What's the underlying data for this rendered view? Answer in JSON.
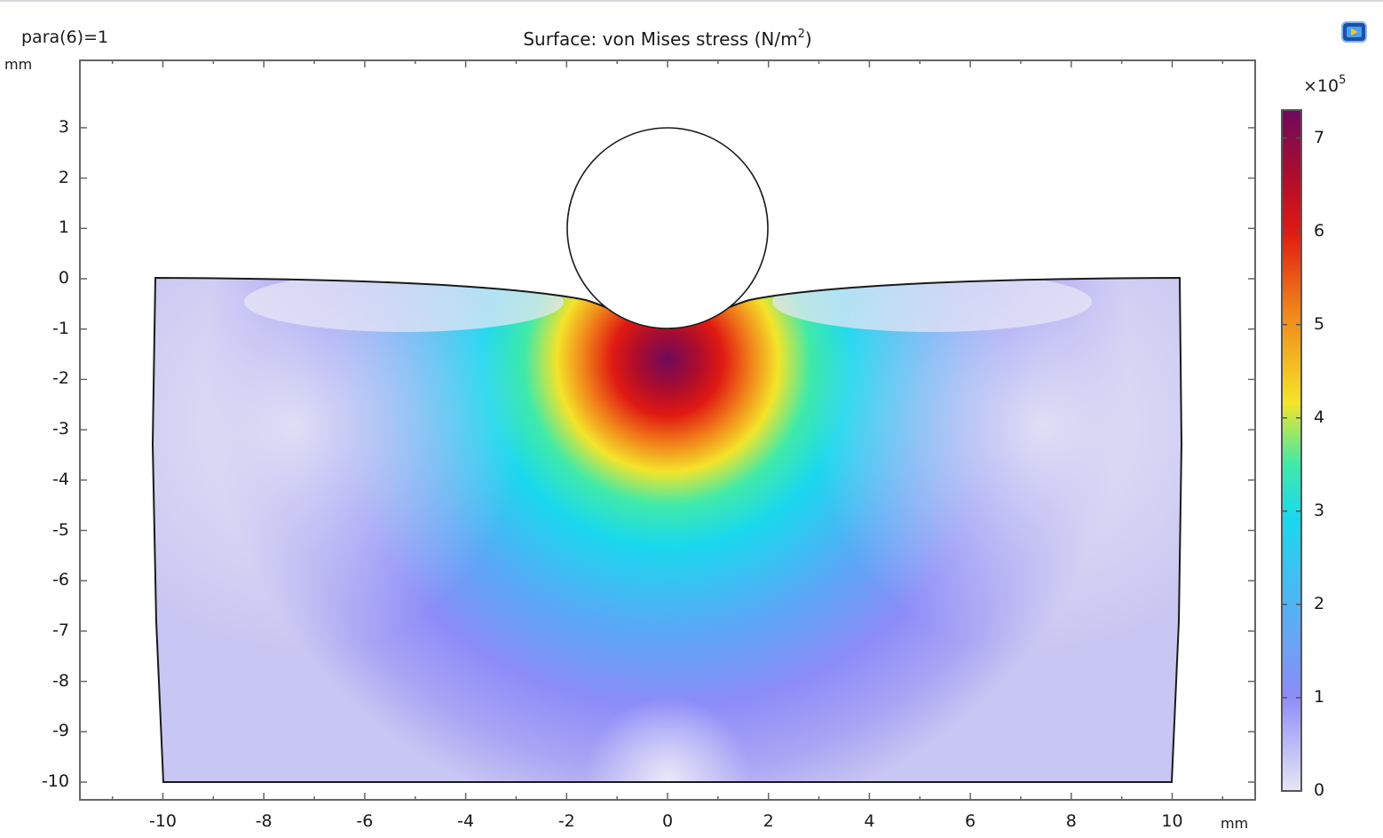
{
  "window": {
    "parameter_label": "para(6)=1",
    "app_icon": "comsol-logo-icon"
  },
  "chart_data": {
    "type": "heatmap",
    "title": "Surface: von Mises stress (N/m",
    "title_superscript": "2",
    "title_suffix": ")",
    "xlabel": "mm",
    "ylabel": "mm",
    "xlim": [
      -11.7,
      11.7
    ],
    "ylim": [
      -10.35,
      4.4
    ],
    "x_ticks": [
      "-10",
      "-8",
      "-6",
      "-4",
      "-2",
      "0",
      "2",
      "4",
      "6",
      "8",
      "10"
    ],
    "y_ticks": [
      "3",
      "2",
      "1",
      "0",
      "-1",
      "-2",
      "-3",
      "-4",
      "-5",
      "-6",
      "-7",
      "-8",
      "-9",
      "-10"
    ],
    "geometry": {
      "block": {
        "x_range": [
          -10,
          10
        ],
        "y_range": [
          -10,
          0
        ],
        "deformed_top": true
      },
      "cylinder": {
        "center": [
          0,
          1
        ],
        "radius": 2,
        "contact_depth": -0.95
      }
    },
    "colorbar": {
      "scale_label": "×10",
      "scale_exponent": "5",
      "min": 0,
      "max": 7.3,
      "ticks": [
        "7",
        "6",
        "5",
        "4",
        "3",
        "2",
        "1",
        "0"
      ],
      "colormap": [
        "#e6e6f5",
        "#8c8cf8",
        "#1ad8ee",
        "#40eaa8",
        "#f4e42a",
        "#f18019",
        "#e01a12",
        "#b00d2a",
        "#6e0a5c"
      ]
    },
    "peak_stress": {
      "location": [
        0,
        -1.75
      ],
      "value": 7.3
    }
  }
}
